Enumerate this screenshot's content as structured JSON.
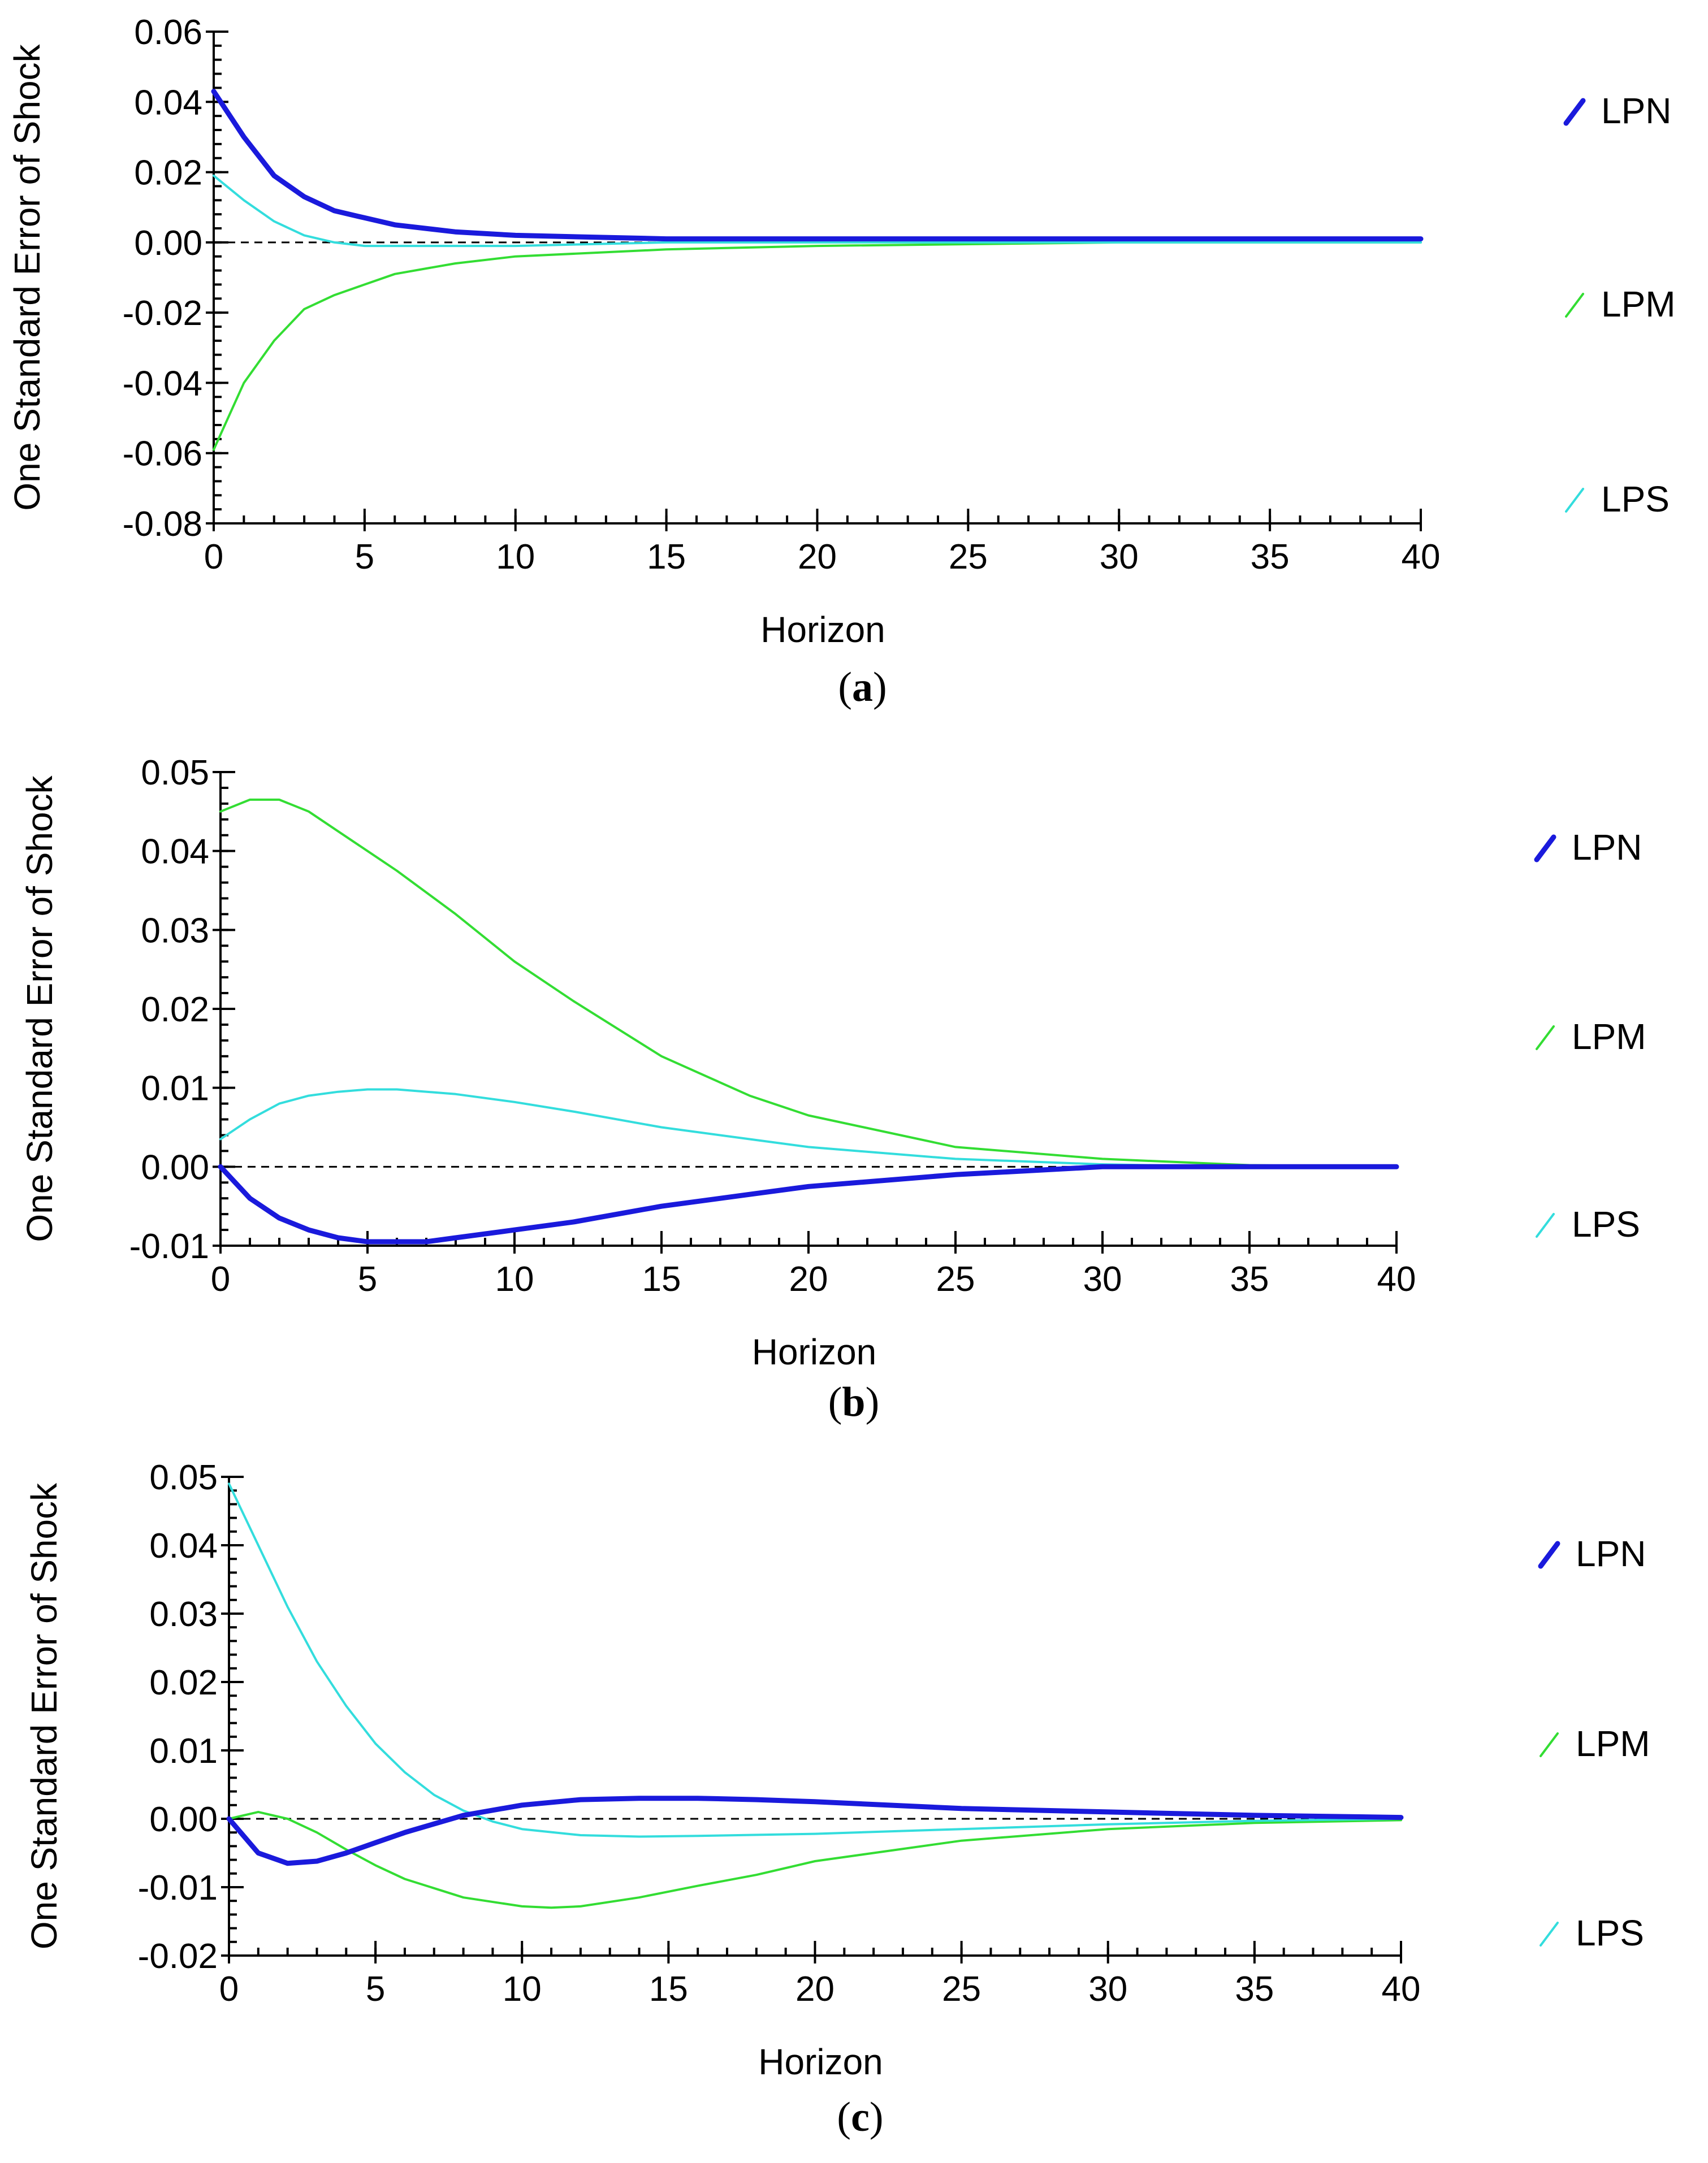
{
  "chart_data": [
    {
      "type": "line",
      "panel_id": "a",
      "caption": "a",
      "ylabel": "One Standard Error of Shock",
      "xlabel": "Horizon",
      "xlim": [
        0,
        40
      ],
      "ylim": [
        -0.08,
        0.06
      ],
      "x_ticks": [
        0,
        5,
        10,
        15,
        20,
        25,
        30,
        35,
        40
      ],
      "x_tick_labels": [
        "0",
        "5",
        "10",
        "15",
        "20",
        "25",
        "30",
        "35",
        "40"
      ],
      "y_ticks": [
        -0.08,
        -0.06,
        -0.04,
        -0.02,
        0.0,
        0.02,
        0.04,
        0.06
      ],
      "y_tick_labels": [
        "-0.08",
        "-0.06",
        "-0.04",
        "-0.02",
        "0.00",
        "0.02",
        "0.04",
        "0.06"
      ],
      "zero_line": true,
      "legend": [
        "LPN",
        "LPM",
        "LPS"
      ],
      "series": [
        {
          "name": "LPN",
          "color": "#1a1adc",
          "width": 9,
          "x": [
            0,
            1,
            2,
            3,
            4,
            5,
            6,
            8,
            10,
            15,
            20,
            30,
            40
          ],
          "values": [
            0.043,
            0.03,
            0.019,
            0.013,
            0.009,
            0.007,
            0.005,
            0.003,
            0.002,
            0.001,
            0.001,
            0.001,
            0.001
          ]
        },
        {
          "name": "LPM",
          "color": "#33dd33",
          "width": 4,
          "x": [
            0,
            1,
            2,
            3,
            4,
            5,
            6,
            8,
            10,
            15,
            20,
            30,
            40
          ],
          "values": [
            -0.059,
            -0.04,
            -0.028,
            -0.019,
            -0.015,
            -0.012,
            -0.009,
            -0.006,
            -0.004,
            -0.002,
            -0.001,
            0.0,
            0.0
          ]
        },
        {
          "name": "LPS",
          "color": "#33dddd",
          "width": 4,
          "x": [
            0,
            1,
            2,
            3,
            4,
            5,
            6,
            8,
            10,
            15,
            20,
            30,
            40
          ],
          "values": [
            0.019,
            0.012,
            0.006,
            0.002,
            0.0,
            -0.001,
            -0.001,
            -0.001,
            -0.001,
            0.0,
            0.0,
            0.0,
            0.0
          ]
        }
      ]
    },
    {
      "type": "line",
      "panel_id": "b",
      "caption": "b",
      "ylabel": "One Standard Error of Shock",
      "xlabel": "Horizon",
      "xlim": [
        0,
        40
      ],
      "ylim": [
        -0.01,
        0.05
      ],
      "x_ticks": [
        0,
        5,
        10,
        15,
        20,
        25,
        30,
        35,
        40
      ],
      "x_tick_labels": [
        "0",
        "5",
        "10",
        "15",
        "20",
        "25",
        "30",
        "35",
        "40"
      ],
      "y_ticks": [
        -0.01,
        0.0,
        0.01,
        0.02,
        0.03,
        0.04,
        0.05
      ],
      "y_tick_labels": [
        "-0.01",
        "0.00",
        "0.01",
        "0.02",
        "0.03",
        "0.04",
        "0.05"
      ],
      "zero_line": true,
      "legend": [
        "LPN",
        "LPM",
        "LPS"
      ],
      "series": [
        {
          "name": "LPN",
          "color": "#1a1adc",
          "width": 9,
          "x": [
            0,
            1,
            2,
            3,
            4,
            5,
            6,
            7,
            8,
            10,
            12,
            15,
            18,
            20,
            25,
            30,
            35,
            40
          ],
          "values": [
            0.0,
            -0.004,
            -0.0065,
            -0.008,
            -0.009,
            -0.0095,
            -0.0095,
            -0.0095,
            -0.009,
            -0.008,
            -0.007,
            -0.005,
            -0.0035,
            -0.0025,
            -0.001,
            0.0,
            0.0,
            0.0
          ]
        },
        {
          "name": "LPM",
          "color": "#33dd33",
          "width": 4,
          "x": [
            0,
            1,
            2,
            3,
            4,
            5,
            6,
            8,
            10,
            12,
            15,
            18,
            20,
            25,
            30,
            35,
            40
          ],
          "values": [
            0.045,
            0.0465,
            0.0465,
            0.045,
            0.0425,
            0.04,
            0.0375,
            0.032,
            0.026,
            0.021,
            0.014,
            0.009,
            0.0065,
            0.0025,
            0.001,
            0.0002,
            0.0
          ]
        },
        {
          "name": "LPS",
          "color": "#33dddd",
          "width": 4,
          "x": [
            0,
            1,
            2,
            3,
            4,
            5,
            6,
            8,
            10,
            12,
            15,
            18,
            20,
            25,
            30,
            35,
            40
          ],
          "values": [
            0.0035,
            0.006,
            0.008,
            0.009,
            0.0095,
            0.0098,
            0.0098,
            0.0092,
            0.0082,
            0.007,
            0.005,
            0.0035,
            0.0025,
            0.001,
            0.0003,
            0.0,
            0.0
          ]
        }
      ]
    },
    {
      "type": "line",
      "panel_id": "c",
      "caption": "c",
      "ylabel": "One Standard Error of Shock",
      "xlabel": "Horizon",
      "xlim": [
        0,
        40
      ],
      "ylim": [
        -0.02,
        0.05
      ],
      "x_ticks": [
        0,
        5,
        10,
        15,
        20,
        25,
        30,
        35,
        40
      ],
      "x_tick_labels": [
        "0",
        "5",
        "10",
        "15",
        "20",
        "25",
        "30",
        "35",
        "40"
      ],
      "y_ticks": [
        -0.02,
        -0.01,
        0.0,
        0.01,
        0.02,
        0.03,
        0.04,
        0.05
      ],
      "y_tick_labels": [
        "-0.02",
        "-0.01",
        "0.00",
        "0.01",
        "0.02",
        "0.03",
        "0.04",
        "0.05"
      ],
      "zero_line": true,
      "legend": [
        "LPN",
        "LPM",
        "LPS"
      ],
      "series": [
        {
          "name": "LPN",
          "color": "#1a1adc",
          "width": 9,
          "x": [
            0,
            1,
            2,
            3,
            4,
            5,
            6,
            8,
            10,
            12,
            14,
            16,
            18,
            20,
            25,
            30,
            35,
            40
          ],
          "values": [
            0.0,
            -0.005,
            -0.0065,
            -0.0062,
            -0.005,
            -0.0035,
            -0.002,
            0.0005,
            0.002,
            0.0028,
            0.003,
            0.003,
            0.0028,
            0.0025,
            0.0015,
            0.001,
            0.0005,
            0.0002
          ]
        },
        {
          "name": "LPM",
          "color": "#33dd33",
          "width": 4,
          "x": [
            0,
            1,
            2,
            3,
            4,
            5,
            6,
            8,
            10,
            11,
            12,
            14,
            16,
            18,
            20,
            25,
            30,
            35,
            40
          ],
          "values": [
            0.0,
            0.001,
            0.0,
            -0.002,
            -0.0045,
            -0.0068,
            -0.0088,
            -0.0115,
            -0.0128,
            -0.013,
            -0.0128,
            -0.0115,
            -0.0098,
            -0.0082,
            -0.0062,
            -0.0032,
            -0.0015,
            -0.0006,
            -0.0002
          ]
        },
        {
          "name": "LPS",
          "color": "#33dddd",
          "width": 4,
          "x": [
            0,
            1,
            2,
            3,
            4,
            5,
            6,
            7,
            8,
            9,
            10,
            12,
            14,
            16,
            20,
            25,
            30,
            35,
            40
          ],
          "values": [
            0.049,
            0.04,
            0.031,
            0.023,
            0.0165,
            0.011,
            0.0068,
            0.0035,
            0.0012,
            -0.0004,
            -0.0015,
            -0.0024,
            -0.0026,
            -0.0025,
            -0.0022,
            -0.0015,
            -0.0008,
            -0.0003,
            0.0
          ]
        }
      ]
    }
  ]
}
